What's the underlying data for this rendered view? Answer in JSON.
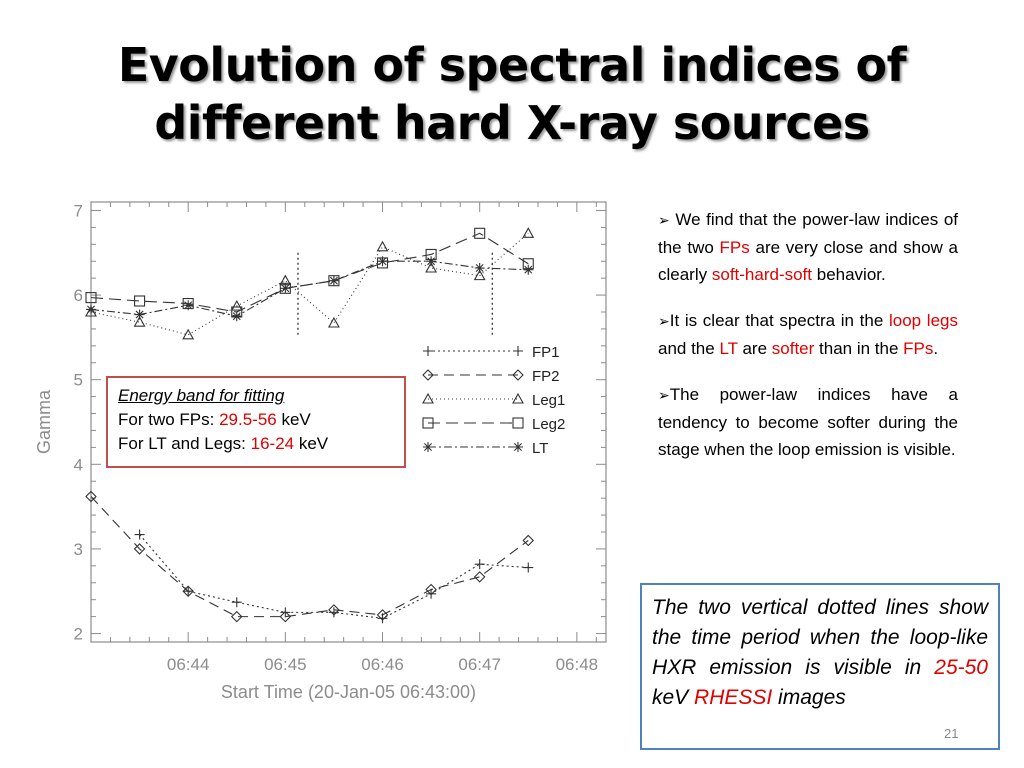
{
  "slide": {
    "title_line1": "Evolution of spectral indices of",
    "title_line2": "different hard X-ray sources",
    "number": "21"
  },
  "fit_box": {
    "header": "Energy band for fitting",
    "fp_prefix": "For two FPs: ",
    "fp_band": "29.5-56",
    "fp_unit": " keV",
    "lt_prefix": "For LT and Legs: ",
    "lt_band": "16-24",
    "lt_unit": " keV"
  },
  "bullets": {
    "marker": "➢",
    "b1_a": "We find that the power-law indices of the two ",
    "b1_fps": "FPs",
    "b1_b": " are very close and show a clearly ",
    "b1_shs": "soft-hard-soft",
    "b1_c": " behavior.",
    "b2_a": "It is clear that spectra in the ",
    "b2_legs": "loop legs",
    "b2_b": " and the ",
    "b2_lt": "LT",
    "b2_c": " are ",
    "b2_softer": "softer",
    "b2_d": " than in the ",
    "b2_fps": "FPs",
    "b2_e": ".",
    "b3": "The power-law indices have a tendency to become softer during the stage when the loop emission is visible."
  },
  "note": {
    "a": "The two vertical dotted lines show the time period when the loop-like HXR emission is visible in ",
    "band": "25-50",
    "b": " keV ",
    "rhessi": "RHESSI",
    "c": " images"
  },
  "colors": {
    "accent_red": "#e00000",
    "fit_box_border": "#c0504d",
    "note_box_border": "#4f81bd"
  },
  "chart_data": {
    "type": "line",
    "xlabel": "Start Time (20-Jan-05 06:43:00)",
    "ylabel": "Gamma",
    "xlim": [
      0,
      5.3
    ],
    "ylim": [
      1.9,
      7.1
    ],
    "x_ticks": [
      1,
      2,
      3,
      4,
      5
    ],
    "x_tick_labels": [
      "06:44",
      "06:45",
      "06:46",
      "06:47",
      "06:48"
    ],
    "y_ticks": [
      2,
      3,
      4,
      5,
      6,
      7
    ],
    "y_tick_labels": [
      "2",
      "3",
      "4",
      "5",
      "6",
      "7"
    ],
    "vertical_dotted_lines": [
      2.13,
      4.13
    ],
    "legend_position": "middle-right",
    "series": [
      {
        "name": "FP1",
        "marker": "plus",
        "dash": "2,3",
        "x": [
          0.5,
          1.0,
          1.5,
          2.0,
          2.5,
          3.0,
          3.5,
          4.0,
          4.5
        ],
        "y": [
          3.17,
          2.5,
          2.37,
          2.25,
          2.25,
          2.18,
          2.47,
          2.82,
          2.78
        ]
      },
      {
        "name": "FP2",
        "marker": "diamond",
        "dash": "10,6",
        "x": [
          0.0,
          0.5,
          1.0,
          1.5,
          2.0,
          2.5,
          3.0,
          3.5,
          4.0,
          4.5
        ],
        "y": [
          3.62,
          3.0,
          2.5,
          2.2,
          2.2,
          2.28,
          2.22,
          2.52,
          2.67,
          3.1
        ]
      },
      {
        "name": "Leg1",
        "marker": "triangle",
        "dash": "1,3",
        "x": [
          0.0,
          0.5,
          1.0,
          1.5,
          2.0,
          2.5,
          3.0,
          3.5,
          4.0,
          4.5
        ],
        "y": [
          5.8,
          5.68,
          5.53,
          5.87,
          6.17,
          5.67,
          6.57,
          6.32,
          6.23,
          6.73
        ]
      },
      {
        "name": "Leg2",
        "marker": "square",
        "dash": "12,6",
        "x": [
          0.0,
          0.5,
          1.0,
          1.5,
          2.0,
          2.5,
          3.0,
          3.5,
          4.0,
          4.5
        ],
        "y": [
          5.97,
          5.93,
          5.9,
          5.8,
          6.08,
          6.17,
          6.38,
          6.48,
          6.73,
          6.37
        ]
      },
      {
        "name": "LT",
        "marker": "asterisk",
        "dash": "8,3,2,3",
        "x": [
          0.0,
          0.5,
          1.0,
          1.5,
          2.0,
          2.5,
          3.0,
          3.5,
          4.0,
          4.5
        ],
        "y": [
          5.83,
          5.77,
          5.88,
          5.75,
          6.08,
          6.17,
          6.4,
          6.4,
          6.32,
          6.3
        ]
      }
    ]
  }
}
